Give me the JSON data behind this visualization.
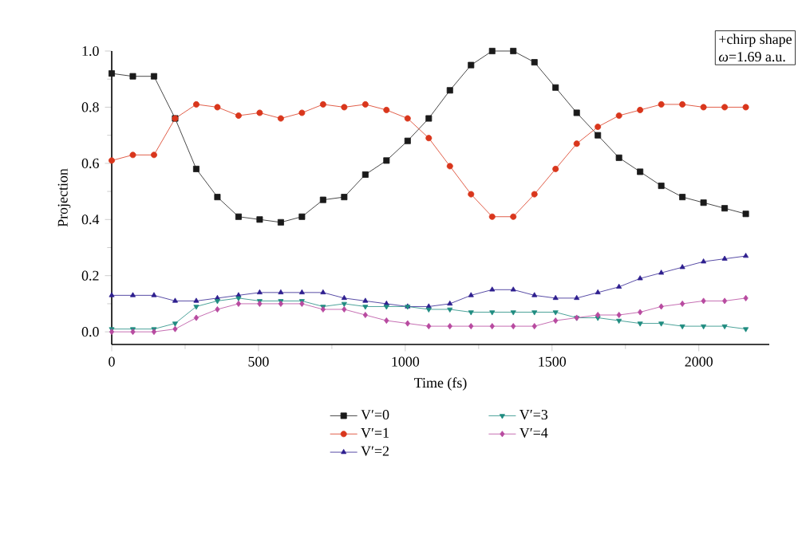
{
  "chart_data": {
    "type": "line",
    "xlabel": "Time (fs)",
    "ylabel": "Projection",
    "x": [
      0,
      72,
      144,
      216,
      288,
      360,
      432,
      504,
      576,
      648,
      720,
      792,
      864,
      936,
      1008,
      1080,
      1152,
      1224,
      1296,
      1368,
      1440,
      1512,
      1584,
      1656,
      1728,
      1800,
      1872,
      1944,
      2016,
      2088,
      2160
    ],
    "series": [
      {
        "name": "V′=0",
        "color": "#1a1a1a",
        "marker": "square",
        "values": [
          0.92,
          0.91,
          0.91,
          0.76,
          0.58,
          0.48,
          0.41,
          0.4,
          0.39,
          0.41,
          0.47,
          0.48,
          0.56,
          0.61,
          0.68,
          0.76,
          0.86,
          0.95,
          1.0,
          1.0,
          0.96,
          0.87,
          0.78,
          0.7,
          0.62,
          0.57,
          0.52,
          0.48,
          0.46,
          0.44,
          0.42
        ]
      },
      {
        "name": "V′=1",
        "color": "#d9361c",
        "marker": "circle",
        "values": [
          0.61,
          0.63,
          0.63,
          0.76,
          0.81,
          0.8,
          0.77,
          0.78,
          0.76,
          0.78,
          0.81,
          0.8,
          0.81,
          0.79,
          0.76,
          0.69,
          0.59,
          0.49,
          0.41,
          0.41,
          0.49,
          0.58,
          0.67,
          0.73,
          0.77,
          0.79,
          0.81,
          0.81,
          0.8,
          0.8,
          0.8
        ]
      },
      {
        "name": "V′=2",
        "color": "#2e1f8f",
        "marker": "triangle",
        "values": [
          0.13,
          0.13,
          0.13,
          0.11,
          0.11,
          0.12,
          0.13,
          0.14,
          0.14,
          0.14,
          0.14,
          0.12,
          0.11,
          0.1,
          0.09,
          0.09,
          0.1,
          0.13,
          0.15,
          0.15,
          0.13,
          0.12,
          0.12,
          0.14,
          0.16,
          0.19,
          0.21,
          0.23,
          0.25,
          0.26,
          0.27
        ]
      },
      {
        "name": "V′=3",
        "color": "#1f8c80",
        "marker": "triangle-down",
        "values": [
          0.01,
          0.01,
          0.01,
          0.03,
          0.09,
          0.11,
          0.12,
          0.11,
          0.11,
          0.11,
          0.09,
          0.1,
          0.09,
          0.09,
          0.09,
          0.08,
          0.08,
          0.07,
          0.07,
          0.07,
          0.07,
          0.07,
          0.05,
          0.05,
          0.04,
          0.03,
          0.03,
          0.02,
          0.02,
          0.02,
          0.01
        ]
      },
      {
        "name": "V′=4",
        "color": "#b84aa0",
        "marker": "diamond",
        "values": [
          0.0,
          0.0,
          0.0,
          0.01,
          0.05,
          0.08,
          0.1,
          0.1,
          0.1,
          0.1,
          0.08,
          0.08,
          0.06,
          0.04,
          0.03,
          0.02,
          0.02,
          0.02,
          0.02,
          0.02,
          0.02,
          0.04,
          0.05,
          0.06,
          0.06,
          0.07,
          0.09,
          0.1,
          0.11,
          0.11,
          0.12
        ]
      }
    ],
    "xlim": [
      0,
      2240
    ],
    "ylim": [
      -0.045,
      1.0
    ],
    "xticks": [
      0,
      500,
      1000,
      1500,
      2000
    ],
    "yticks": [
      {
        "value": 0,
        "label": "0.0"
      },
      {
        "value": 0.2,
        "label": "0.2"
      },
      {
        "value": 0.4,
        "label": "0.4"
      },
      {
        "value": 0.6,
        "label": "0.6"
      },
      {
        "value": 0.8,
        "label": "0.8"
      },
      {
        "value": 1.0,
        "label": "1.0"
      }
    ],
    "legend": "bottom",
    "grid": false,
    "line_style": "solid",
    "annotations": [
      "+chirp shape",
      "*ω*=1.69 a.u."
    ]
  }
}
